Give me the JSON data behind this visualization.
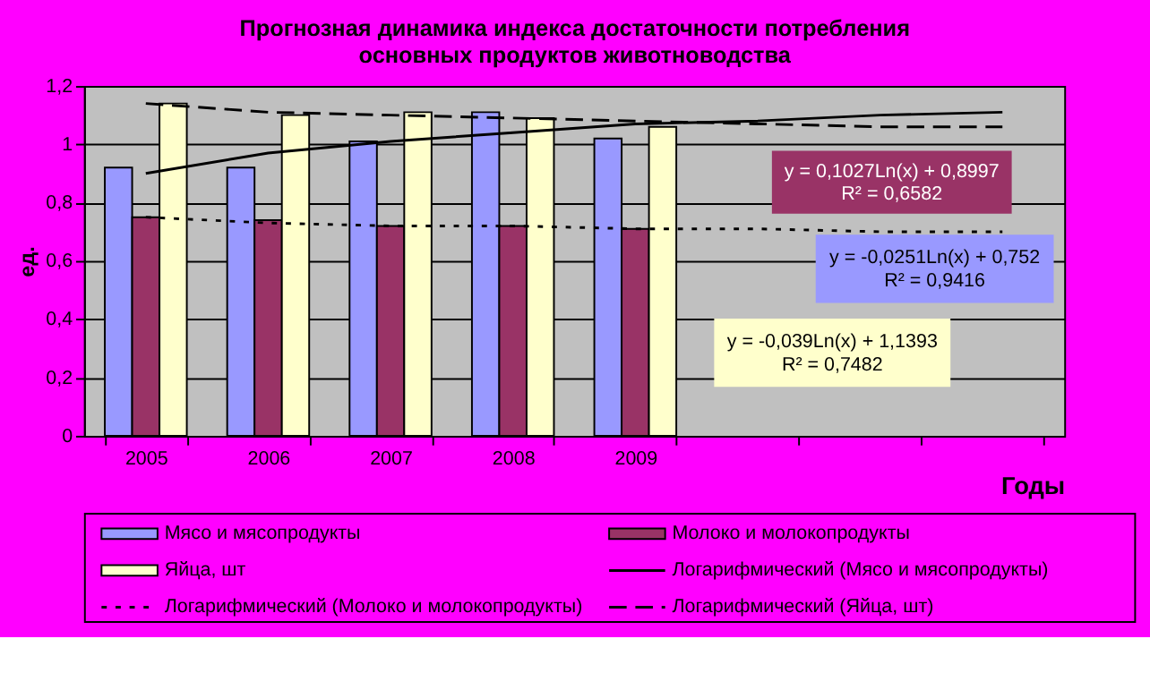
{
  "chart_data": {
    "type": "bar",
    "title": "Прогнозная динамика индекса достаточности потребления\nосновных продуктов животноводства",
    "xlabel": "Годы",
    "ylabel": "ед.",
    "categories": [
      "2005",
      "2006",
      "2007",
      "2008",
      "2009",
      null,
      null,
      null
    ],
    "series": [
      {
        "name": "Мясо и мясопродукты",
        "color": "#9999ff",
        "values": [
          0.92,
          0.92,
          1.01,
          1.11,
          1.02,
          null,
          null,
          null
        ]
      },
      {
        "name": "Молоко и молокопродукты",
        "color": "#993366",
        "values": [
          0.75,
          0.74,
          0.72,
          0.72,
          0.71,
          null,
          null,
          null
        ]
      },
      {
        "name": "Яйца, шт",
        "color": "#ffffcc",
        "values": [
          1.14,
          1.1,
          1.11,
          1.09,
          1.06,
          null,
          null,
          null
        ]
      },
      {
        "name": "Логарифмический (Мясо и мясопродукты)",
        "type": "line",
        "color": "#000000",
        "line_style": "solid",
        "values": [
          0.9,
          0.97,
          1.01,
          1.04,
          1.07,
          1.08,
          1.1,
          1.11
        ]
      },
      {
        "name": "Логарифмический (Молоко и молокопродукты)",
        "type": "line",
        "color": "#000000",
        "line_style": "dotted",
        "values": [
          0.75,
          0.73,
          0.72,
          0.72,
          0.71,
          0.71,
          0.7,
          0.7
        ]
      },
      {
        "name": "Логарифмический (Яйца, шт)",
        "type": "line",
        "color": "#000000",
        "line_style": "dashed",
        "values": [
          1.14,
          1.11,
          1.1,
          1.09,
          1.08,
          1.07,
          1.06,
          1.06
        ]
      }
    ],
    "ylim": [
      0,
      1.2
    ],
    "yticks": [
      0,
      {
        "value": 0.2,
        "label": "0,2"
      },
      {
        "value": 0.4,
        "label": "0,4"
      },
      {
        "value": 0.6,
        "label": "0,6"
      },
      {
        "value": 0.8,
        "label": "0,8"
      },
      1,
      {
        "value": 1.2,
        "label": "1,2"
      }
    ],
    "grid": "y",
    "legend": "bottom",
    "annotations": [
      "y = 0,1027Ln(x) + 0,8997\nR² = 0,6582",
      "y = -0,0251Ln(x) + 0,752\nR² = 0,9416",
      "y = -0,039Ln(x) + 1,1393\nR² = 0,7482"
    ]
  }
}
